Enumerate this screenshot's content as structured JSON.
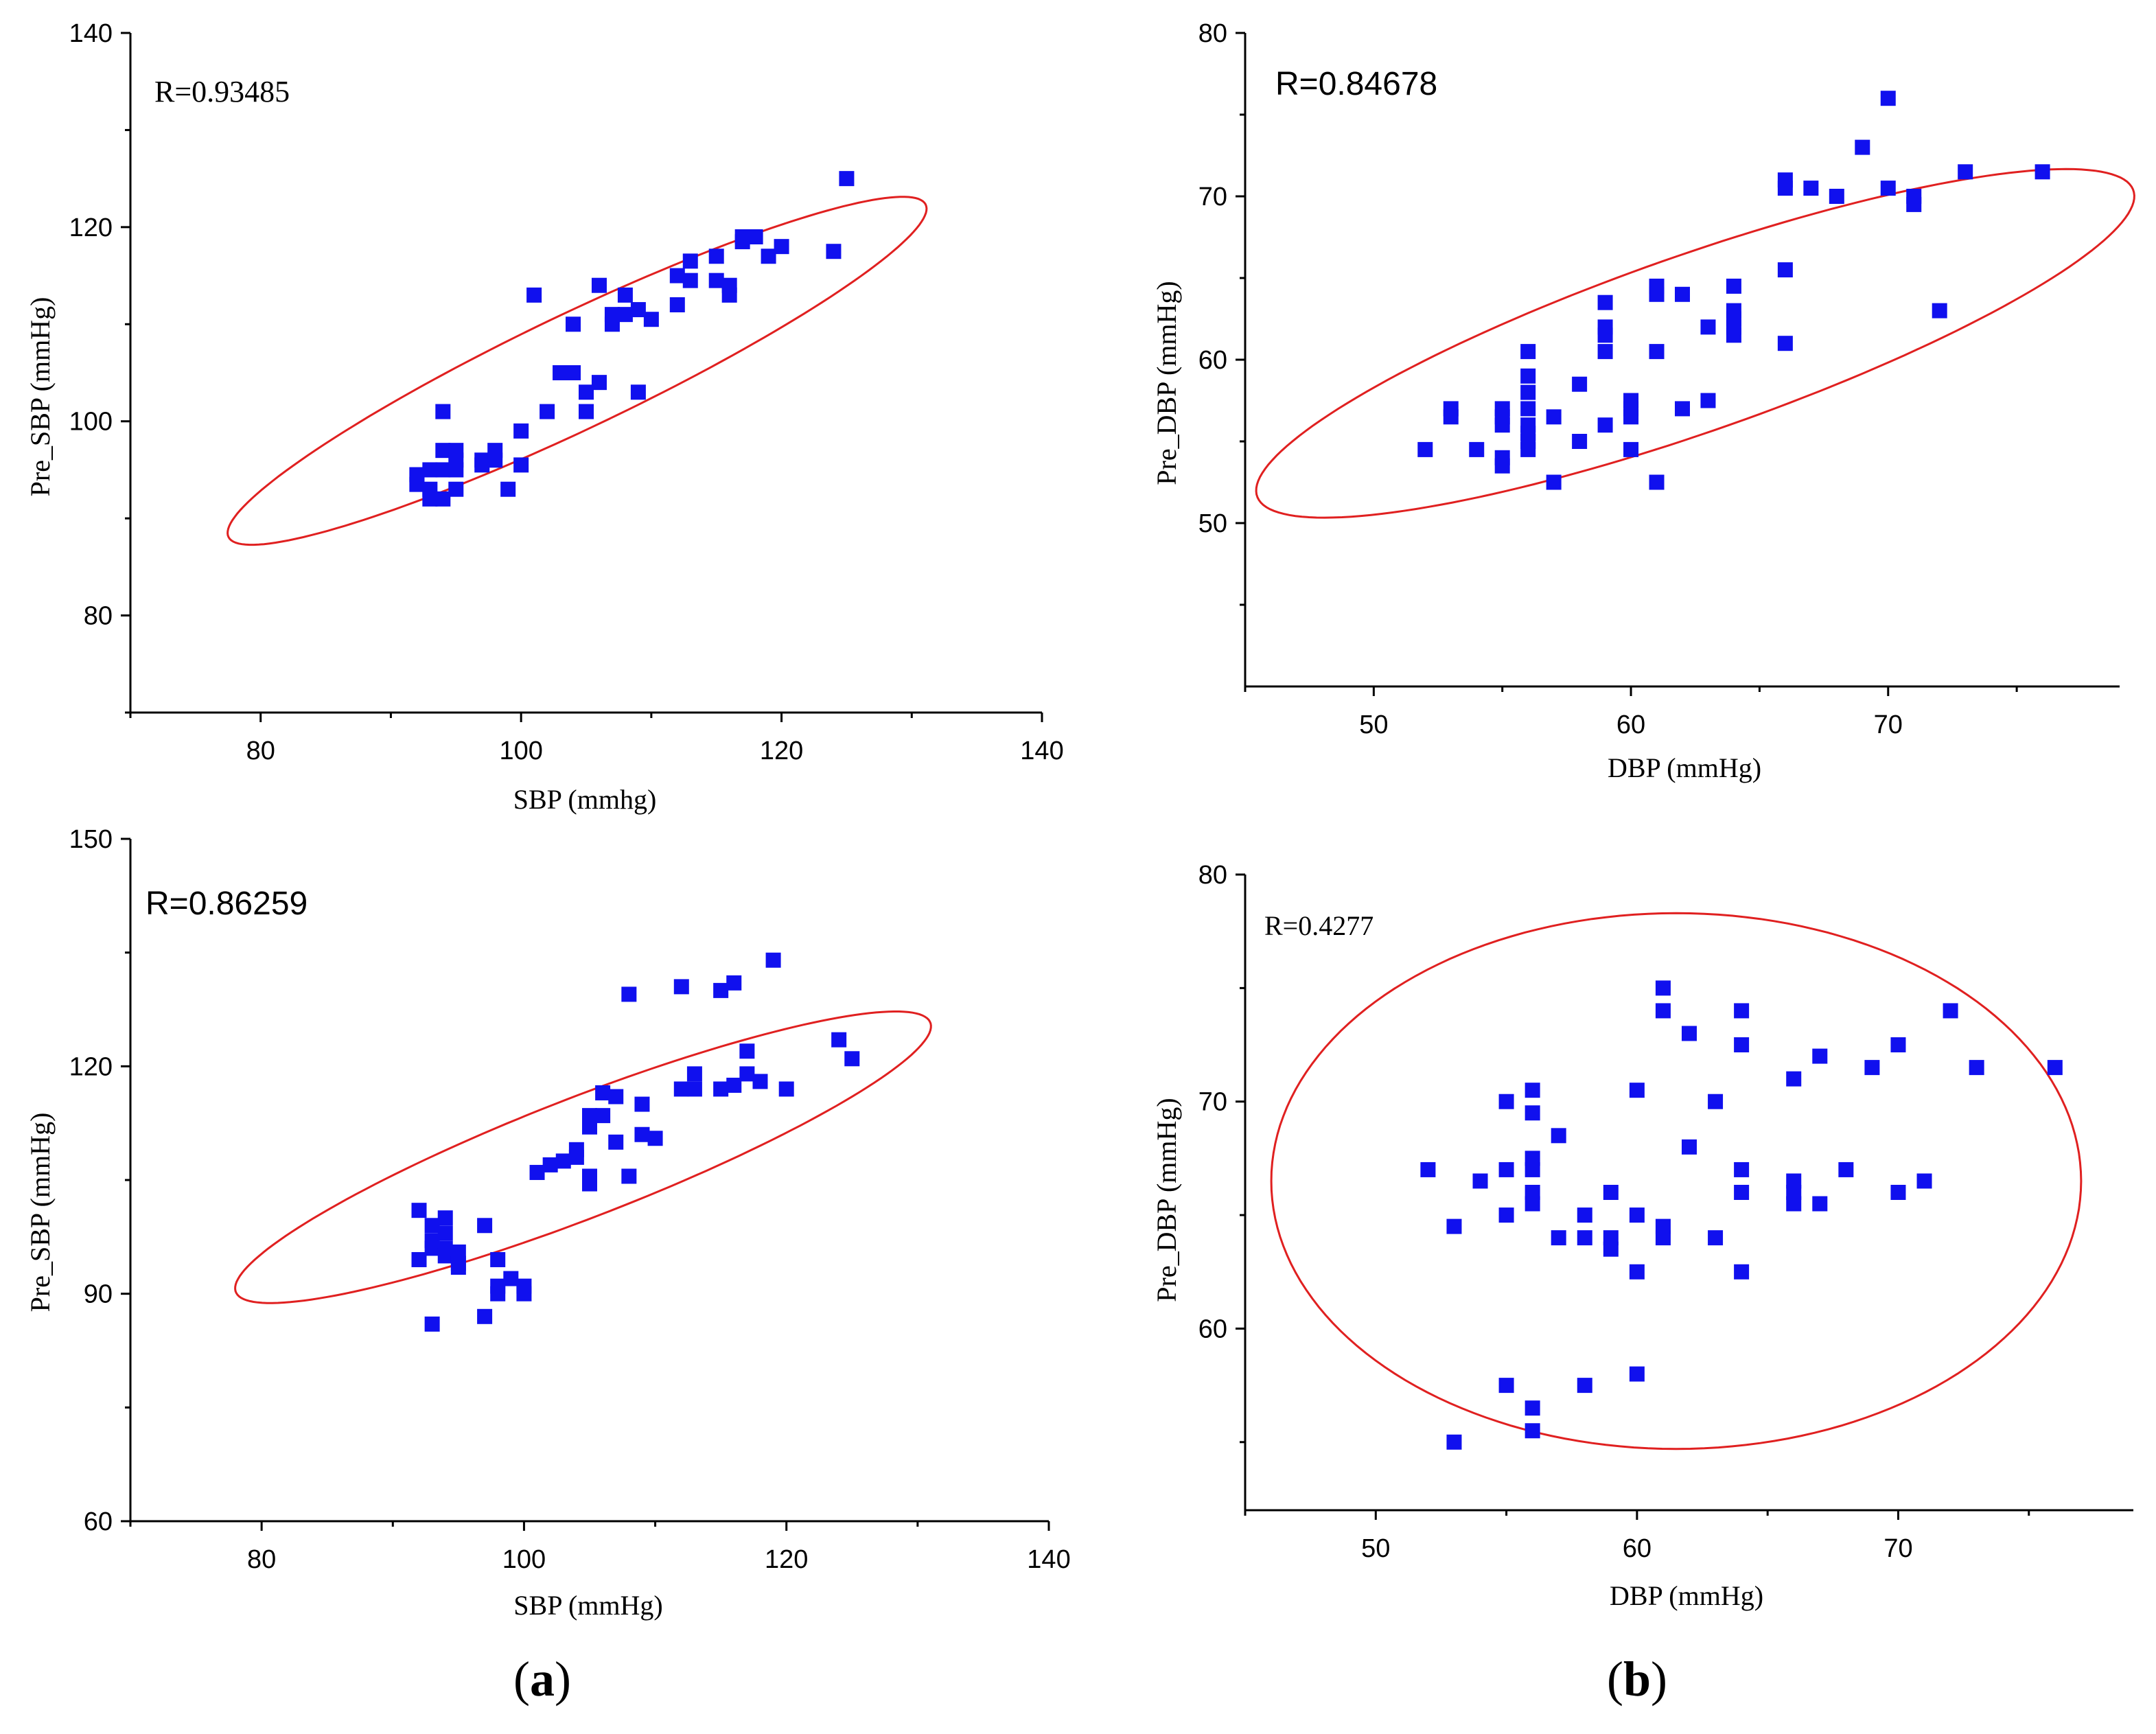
{
  "colors": {
    "marker": "#1010ee",
    "ellipse": "#e02020",
    "axis": "#000000"
  },
  "chart_data": [
    {
      "id": "top-left",
      "type": "scatter",
      "xlabel": "SBP (mmhg)",
      "ylabel": "Pre_SBP (mmHg)",
      "xlim": [
        70,
        140
      ],
      "ylim": [
        70,
        140
      ],
      "xticks": [
        80,
        100,
        120,
        140
      ],
      "yticks": [
        80,
        100,
        120,
        140
      ],
      "annotation": "R=0.93485",
      "ellipse": {
        "center": [
          104.3,
          105.2
        ],
        "rx": 31.8,
        "ry": 5.5,
        "angle_deg": 33
      },
      "points": [
        [
          92,
          94.5
        ],
        [
          92,
          93.5
        ],
        [
          93,
          92
        ],
        [
          93,
          95
        ],
        [
          93,
          93
        ],
        [
          94,
          92
        ],
        [
          94,
          95
        ],
        [
          94,
          97
        ],
        [
          94,
          101
        ],
        [
          95,
          93
        ],
        [
          95,
          95
        ],
        [
          95,
          96
        ],
        [
          95,
          97
        ],
        [
          97,
          95.5
        ],
        [
          97,
          96
        ],
        [
          98,
          97
        ],
        [
          98,
          96
        ],
        [
          99,
          93
        ],
        [
          100,
          95.5
        ],
        [
          100,
          99
        ],
        [
          101,
          113
        ],
        [
          102,
          101
        ],
        [
          103,
          105
        ],
        [
          104,
          105
        ],
        [
          104,
          110
        ],
        [
          105,
          103
        ],
        [
          105,
          101
        ],
        [
          106,
          104
        ],
        [
          106,
          114
        ],
        [
          107,
          110
        ],
        [
          107,
          111
        ],
        [
          108,
          111
        ],
        [
          108,
          113
        ],
        [
          109,
          111.5
        ],
        [
          109,
          103
        ],
        [
          110,
          110.5
        ],
        [
          112,
          112
        ],
        [
          112,
          115
        ],
        [
          113,
          114.5
        ],
        [
          113,
          116.5
        ],
        [
          115,
          114.5
        ],
        [
          115,
          117
        ],
        [
          116,
          114
        ],
        [
          116,
          113
        ],
        [
          117,
          118.5
        ],
        [
          117,
          119
        ],
        [
          118,
          119
        ],
        [
          119,
          117
        ],
        [
          120,
          118
        ],
        [
          124,
          117.5
        ],
        [
          125,
          125
        ]
      ]
    },
    {
      "id": "top-right",
      "type": "scatter",
      "xlabel": "DBP (mmHg)",
      "ylabel": "Pre_DBP (mmHg)",
      "xlim": [
        45,
        79
      ],
      "ylim": [
        40,
        80
      ],
      "xticks": [
        50,
        60,
        70
      ],
      "yticks": [
        50,
        60,
        70,
        80
      ],
      "annotation": "R=0.84678",
      "ellipse": {
        "center": [
          62.5,
          61
        ],
        "rx": 19.5,
        "ry": 5,
        "angle_deg": 30
      },
      "points": [
        [
          52,
          54.5
        ],
        [
          53,
          56.5
        ],
        [
          53,
          57
        ],
        [
          54,
          54.5
        ],
        [
          55,
          53.5
        ],
        [
          55,
          54
        ],
        [
          55,
          56
        ],
        [
          55,
          56.5
        ],
        [
          55,
          57
        ],
        [
          56,
          54.5
        ],
        [
          56,
          55
        ],
        [
          56,
          55.5
        ],
        [
          56,
          56
        ],
        [
          56,
          57
        ],
        [
          56,
          58
        ],
        [
          56,
          59
        ],
        [
          56,
          60.5
        ],
        [
          57,
          52.5
        ],
        [
          57,
          56.5
        ],
        [
          58,
          55
        ],
        [
          58,
          58.5
        ],
        [
          59,
          56
        ],
        [
          59,
          60.5
        ],
        [
          59,
          61.5
        ],
        [
          59,
          62
        ],
        [
          59,
          63.5
        ],
        [
          60,
          54.5
        ],
        [
          60,
          56.5
        ],
        [
          60,
          57
        ],
        [
          60,
          57.5
        ],
        [
          61,
          52.5
        ],
        [
          61,
          60.5
        ],
        [
          61,
          64
        ],
        [
          61,
          64.5
        ],
        [
          62,
          57
        ],
        [
          62,
          64
        ],
        [
          63,
          57.5
        ],
        [
          63,
          62
        ],
        [
          64,
          61.5
        ],
        [
          64,
          62
        ],
        [
          64,
          62.5
        ],
        [
          64,
          63
        ],
        [
          64,
          64.5
        ],
        [
          66,
          61
        ],
        [
          66,
          65.5
        ],
        [
          66,
          70.5
        ],
        [
          66,
          71
        ],
        [
          67,
          70.5
        ],
        [
          68,
          70
        ],
        [
          69,
          73
        ],
        [
          70,
          70.5
        ],
        [
          70,
          76
        ],
        [
          71,
          69.5
        ],
        [
          71,
          70
        ],
        [
          72,
          63
        ],
        [
          73,
          71.5
        ],
        [
          76,
          71.5
        ]
      ]
    },
    {
      "id": "bottom-left",
      "type": "scatter",
      "xlabel": "SBP (mmHg)",
      "ylabel": "Pre_SBP (mmHg)",
      "xlim": [
        70,
        140
      ],
      "ylim": [
        60,
        150
      ],
      "xticks": [
        80,
        100,
        120,
        140
      ],
      "yticks": [
        60,
        90,
        120,
        150
      ],
      "annotation": "R=0.86259",
      "ellipse": {
        "center": [
          104.5,
          108
        ],
        "rx": 32,
        "ry": 7,
        "angle_deg": 35
      },
      "points": [
        [
          92,
          101
        ],
        [
          92,
          94.5
        ],
        [
          93,
          99
        ],
        [
          93,
          97
        ],
        [
          93,
          86
        ],
        [
          93,
          96
        ],
        [
          94,
          100
        ],
        [
          94,
          98
        ],
        [
          94,
          96
        ],
        [
          94,
          95
        ],
        [
          95,
          94
        ],
        [
          95,
          95.5
        ],
        [
          95,
          93.5
        ],
        [
          97,
          99
        ],
        [
          97,
          87
        ],
        [
          98,
          94.5
        ],
        [
          98,
          90
        ],
        [
          98,
          91
        ],
        [
          99,
          92
        ],
        [
          100,
          91
        ],
        [
          100,
          90
        ],
        [
          101,
          106
        ],
        [
          102,
          107
        ],
        [
          103,
          107.5
        ],
        [
          104,
          108
        ],
        [
          104,
          109
        ],
        [
          105,
          104.5
        ],
        [
          105,
          105.5
        ],
        [
          105,
          112
        ],
        [
          105,
          113.5
        ],
        [
          106,
          113.5
        ],
        [
          106,
          116.5
        ],
        [
          107,
          116
        ],
        [
          107,
          110
        ],
        [
          108,
          105.5
        ],
        [
          108,
          129.5
        ],
        [
          109,
          111
        ],
        [
          109,
          115
        ],
        [
          110,
          110.5
        ],
        [
          112,
          117
        ],
        [
          112,
          130.5
        ],
        [
          113,
          117
        ],
        [
          113,
          119
        ],
        [
          115,
          130
        ],
        [
          115,
          117
        ],
        [
          116,
          117.5
        ],
        [
          116,
          131
        ],
        [
          117,
          119
        ],
        [
          117,
          122
        ],
        [
          118,
          118
        ],
        [
          119,
          134
        ],
        [
          120,
          117
        ],
        [
          124,
          123.5
        ],
        [
          125,
          121
        ]
      ]
    },
    {
      "id": "bottom-right",
      "type": "scatter",
      "xlabel": "DBP (mmHg)",
      "ylabel": "Pre_DBP (mmHg)",
      "xlim": [
        45,
        79
      ],
      "ylim": [
        52,
        80
      ],
      "xticks": [
        50,
        60,
        70
      ],
      "yticks": [
        60,
        70,
        80
      ],
      "annotation": "R=0.4277",
      "ellipse": {
        "center": [
          61.5,
          66.5
        ],
        "rx": 15.5,
        "ry": 11.8,
        "angle_deg": 0
      },
      "points": [
        [
          52,
          67
        ],
        [
          53,
          64.5
        ],
        [
          53,
          55
        ],
        [
          54,
          66.5
        ],
        [
          55,
          57.5
        ],
        [
          55,
          65
        ],
        [
          55,
          67
        ],
        [
          55,
          70
        ],
        [
          56,
          55.5
        ],
        [
          56,
          56.5
        ],
        [
          56,
          65.5
        ],
        [
          56,
          66
        ],
        [
          56,
          67
        ],
        [
          56,
          67.5
        ],
        [
          56,
          69.5
        ],
        [
          56,
          70.5
        ],
        [
          57,
          64
        ],
        [
          57,
          68.5
        ],
        [
          58,
          57.5
        ],
        [
          58,
          64
        ],
        [
          58,
          65
        ],
        [
          59,
          63.5
        ],
        [
          59,
          64
        ],
        [
          59,
          66
        ],
        [
          60,
          58
        ],
        [
          60,
          62.5
        ],
        [
          60,
          65
        ],
        [
          60,
          70.5
        ],
        [
          61,
          64
        ],
        [
          61,
          64.5
        ],
        [
          61,
          74
        ],
        [
          61,
          75
        ],
        [
          62,
          68
        ],
        [
          62,
          73
        ],
        [
          63,
          64
        ],
        [
          63,
          70
        ],
        [
          64,
          62.5
        ],
        [
          64,
          66
        ],
        [
          64,
          67
        ],
        [
          64,
          72.5
        ],
        [
          64,
          74
        ],
        [
          66,
          65.5
        ],
        [
          66,
          66
        ],
        [
          66,
          66.5
        ],
        [
          66,
          71
        ],
        [
          67,
          65.5
        ],
        [
          67,
          72
        ],
        [
          68,
          67
        ],
        [
          69,
          71.5
        ],
        [
          70,
          66
        ],
        [
          70,
          72.5
        ],
        [
          71,
          66.5
        ],
        [
          72,
          74
        ],
        [
          73,
          71.5
        ],
        [
          76,
          71.5
        ]
      ]
    }
  ],
  "panel_labels": {
    "a": {
      "open": "(",
      "letter": "a",
      "close": ")"
    },
    "b": {
      "open": "(",
      "letter": "b",
      "close": ")"
    }
  }
}
